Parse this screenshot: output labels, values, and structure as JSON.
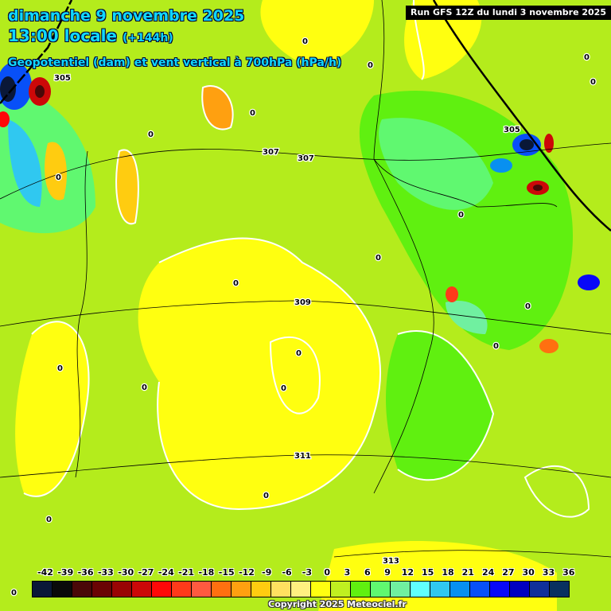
{
  "header": {
    "date": "dimanche 9 novembre 2025",
    "time": "13:00 locale",
    "lead": "(+144h)",
    "parameter": "Geopotentiel (dam) et vent vertical à 700hPa (hPa/h)",
    "run": "Run GFS 12Z du lundi 3 novembre 2025"
  },
  "legend": {
    "labels": [
      "-42",
      "-39",
      "-36",
      "-33",
      "-30",
      "-27",
      "-24",
      "-21",
      "-18",
      "-15",
      "-12",
      "-9",
      "-6",
      "-3",
      "0",
      "3",
      "6",
      "9",
      "12",
      "15",
      "18",
      "21",
      "24",
      "27",
      "30",
      "33",
      "36"
    ],
    "colors": [
      "#0a1838",
      "#0a0a0a",
      "#4a0808",
      "#6a0404",
      "#990404",
      "#cc0808",
      "#ff0808",
      "#ff3a1a",
      "#ff5a40",
      "#ff7010",
      "#ffa010",
      "#ffcc10",
      "#ffe060",
      "#fff080",
      "#ffff10",
      "#c0f020",
      "#60f010",
      "#60f870",
      "#70f0a0",
      "#60ffff",
      "#30c8f0",
      "#0890f0",
      "#0850f8",
      "#0808f8",
      "#0000c0",
      "#10309a",
      "#083060"
    ]
  },
  "contours": {
    "labels": [
      "305",
      "305",
      "307",
      "307",
      "309",
      "311",
      "313"
    ],
    "zero": "0"
  },
  "copyright": "Copyright 2025 Meteociel.fr"
}
